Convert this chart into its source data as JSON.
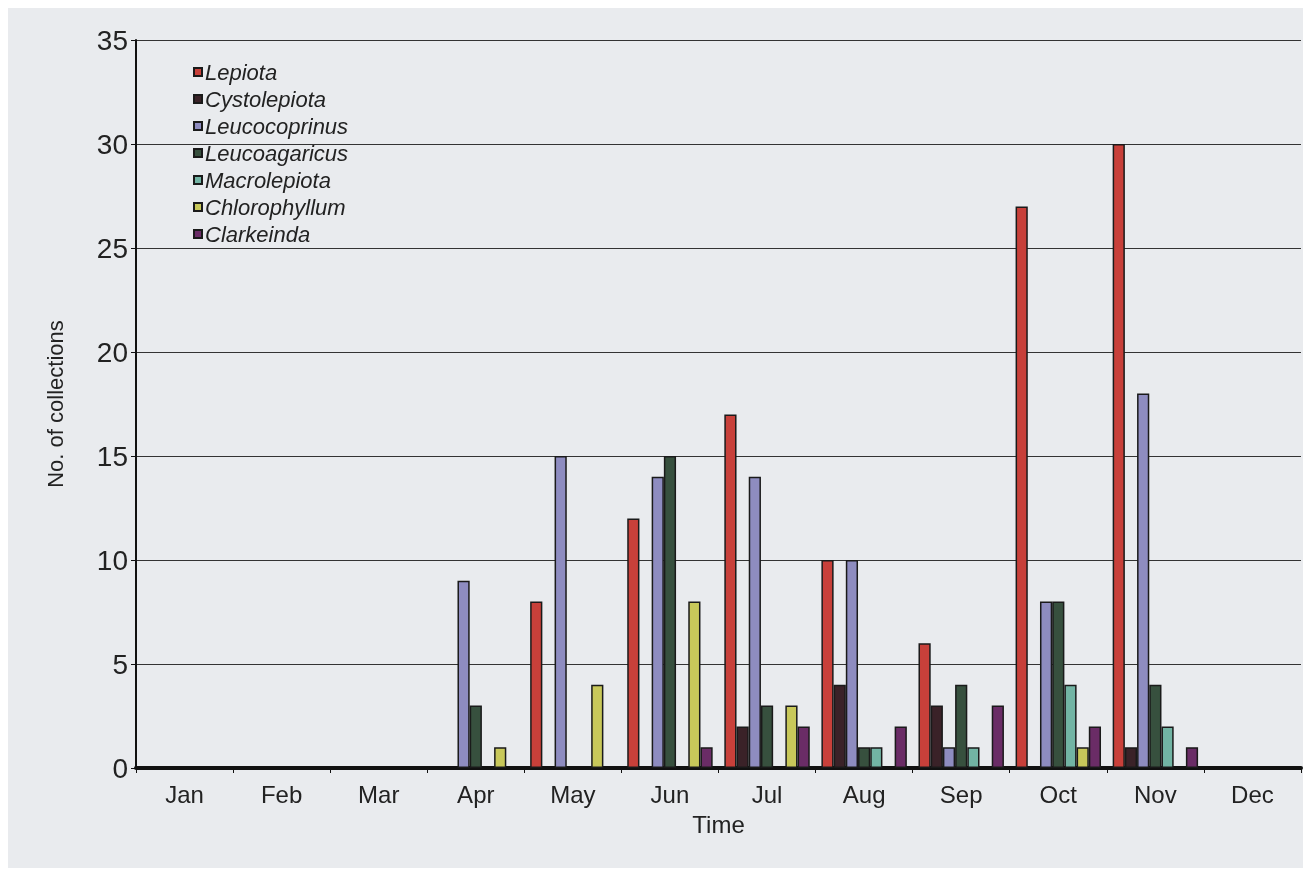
{
  "chart_data": {
    "type": "bar",
    "xlabel": "Time",
    "ylabel": "No. of collections",
    "categories": [
      "Jan",
      "Feb",
      "Mar",
      "Apr",
      "May",
      "Jun",
      "Jul",
      "Aug",
      "Sep",
      "Oct",
      "Nov",
      "Dec"
    ],
    "series": [
      {
        "name": "Lepiota",
        "color": "#c8403a",
        "values": [
          0,
          0,
          0,
          0,
          8,
          12,
          17,
          10,
          6,
          27,
          30,
          0
        ]
      },
      {
        "name": "Cystolepiota",
        "color": "#3a2228",
        "values": [
          0,
          0,
          0,
          0,
          0,
          0,
          2,
          4,
          3,
          0,
          1,
          0
        ]
      },
      {
        "name": "Leucocoprinus",
        "color": "#8e8cc0",
        "values": [
          0,
          0,
          0,
          9,
          15,
          14,
          14,
          10,
          1,
          8,
          18,
          0
        ]
      },
      {
        "name": "Leucoagaricus",
        "color": "#37503e",
        "values": [
          0,
          0,
          0,
          3,
          0,
          15,
          3,
          1,
          4,
          8,
          4,
          0
        ]
      },
      {
        "name": "Macrolepiota",
        "color": "#72b4a4",
        "values": [
          0,
          0,
          0,
          0,
          0,
          0,
          0,
          1,
          1,
          4,
          2,
          0
        ]
      },
      {
        "name": "Chlorophyllum",
        "color": "#c8c85a",
        "values": [
          0,
          0,
          0,
          1,
          4,
          8,
          3,
          0,
          0,
          1,
          0,
          0
        ]
      },
      {
        "name": "Clarkeinda",
        "color": "#6a2c66",
        "values": [
          0,
          0,
          0,
          0,
          0,
          1,
          2,
          2,
          3,
          2,
          1,
          0
        ]
      }
    ],
    "ylim": [
      0,
      35
    ],
    "yticks": [
      0,
      5,
      10,
      15,
      20,
      25,
      30,
      35
    ],
    "grid": "y",
    "legend": "top left"
  }
}
